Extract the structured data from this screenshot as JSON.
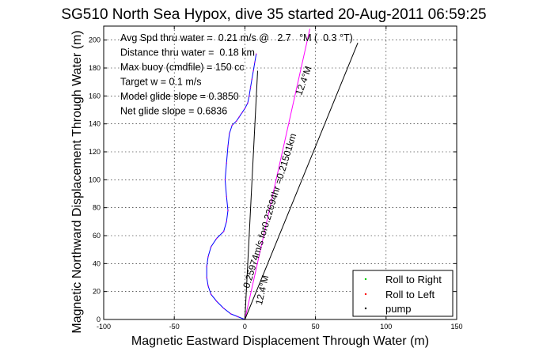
{
  "chart_data": {
    "type": "line",
    "title": "SG510 North Sea Hypox, dive 35 started 20-Aug-2011 06:59:25",
    "xlabel": "Magnetic Eastward Displacement Through Water (m)",
    "ylabel": "Magnetic Northward Displacement Through Water (m)",
    "xlim": [
      -100,
      150
    ],
    "ylim": [
      0,
      210
    ],
    "xticks": [
      "-100",
      "-50",
      "0",
      "50",
      "100",
      "150"
    ],
    "yticks": [
      "0",
      "20",
      "40",
      "60",
      "80",
      "100",
      "120",
      "140",
      "160",
      "180",
      "200"
    ],
    "grid": true,
    "info_lines": [
      "Avg Spd thru water =  0.21 m/s @   2.7   °M (  0.3 °T)",
      "Distance thru water =  0.18 km",
      "Max buoy (cmdfile) = 150 cc",
      "Target w = 0.1 m/s",
      "Model glide slope = 0.3850",
      "Net glide slope = 0.6836"
    ],
    "annotations": [
      {
        "text": "0.25974m/s for0.22694hr =0.21501km",
        "x": 3,
        "y": 22,
        "rotation_deg": -73
      },
      {
        "text": "12.4°M",
        "x": 12,
        "y": 10,
        "rotation_deg": -77
      },
      {
        "text": "12.4°M",
        "x": 40,
        "y": 160,
        "rotation_deg": -70
      }
    ],
    "legend": {
      "placement": "bottom-right",
      "entries": [
        {
          "label": "Roll to Right",
          "color": "#00cc00"
        },
        {
          "label": "Roll to Left",
          "color": "#ff0000"
        },
        {
          "label": "pump",
          "color": "#000000"
        }
      ]
    },
    "series": [
      {
        "kind": "track",
        "color": "#0000ff",
        "x": [
          0,
          -5,
          -10,
          -15,
          -20,
          -24,
          -26,
          -27,
          -27,
          -26,
          -24,
          -20,
          -15,
          -13,
          -12,
          -13,
          -14,
          -13,
          -12,
          -11,
          -9,
          -6,
          -4,
          -2,
          0,
          2,
          3,
          4,
          5,
          6,
          7,
          8
        ],
        "y": [
          0,
          2,
          4,
          8,
          13,
          18,
          24,
          30,
          38,
          45,
          52,
          58,
          63,
          70,
          78,
          88,
          100,
          112,
          124,
          133,
          139,
          142,
          145,
          148,
          151,
          155,
          160,
          166,
          172,
          178,
          184,
          190
        ]
      },
      {
        "kind": "line",
        "color": "#000000",
        "x": [
          0,
          9
        ],
        "y": [
          0,
          178
        ]
      },
      {
        "kind": "line",
        "color": "#ff00ff",
        "x": [
          0,
          46
        ],
        "y": [
          0,
          208
        ]
      },
      {
        "kind": "line",
        "color": "#000000",
        "x": [
          0,
          80
        ],
        "y": [
          0,
          198
        ]
      }
    ]
  }
}
